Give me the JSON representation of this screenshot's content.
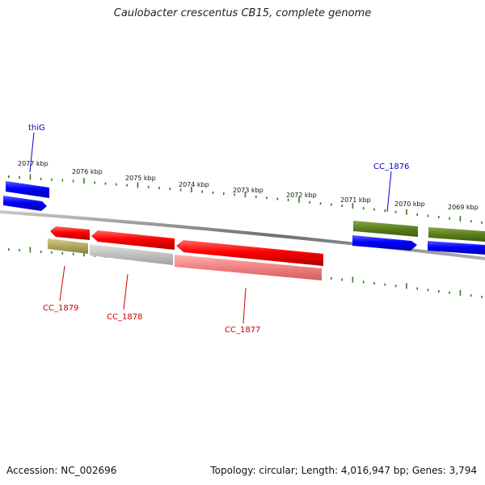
{
  "title": "Caulobacter crescentus CB15, complete genome",
  "footer": {
    "accession": "Accession: NC_002696",
    "summary": "Topology: circular; Length: 4,016,947 bp; Genes: 3,794"
  },
  "scale_labels": [
    "2077 kbp",
    "2076 kbp",
    "2075 kbp",
    "2074 kbp",
    "2073 kbp",
    "2072 kbp",
    "2071 kbp",
    "2070 kbp",
    "2069 kbp"
  ],
  "genes": [
    {
      "name": "thiG",
      "color": "#0000cc"
    },
    {
      "name": "CC_1876",
      "color": "#0000cc"
    },
    {
      "name": "CC_1879",
      "color": "#cc0000"
    },
    {
      "name": "CC_1878",
      "color": "#cc0000"
    },
    {
      "name": "CC_1877",
      "color": "#cc0000"
    }
  ],
  "colors": {
    "backbone": "#808080",
    "tick": "#2e7d1e",
    "forward_cds": "#0000ff",
    "reverse_cds": "#ff0000",
    "olive": "#5a7f1a",
    "khaki": "#b0a860",
    "grey_feature": "#c0c0c0",
    "pink_feature": "#f08080"
  }
}
